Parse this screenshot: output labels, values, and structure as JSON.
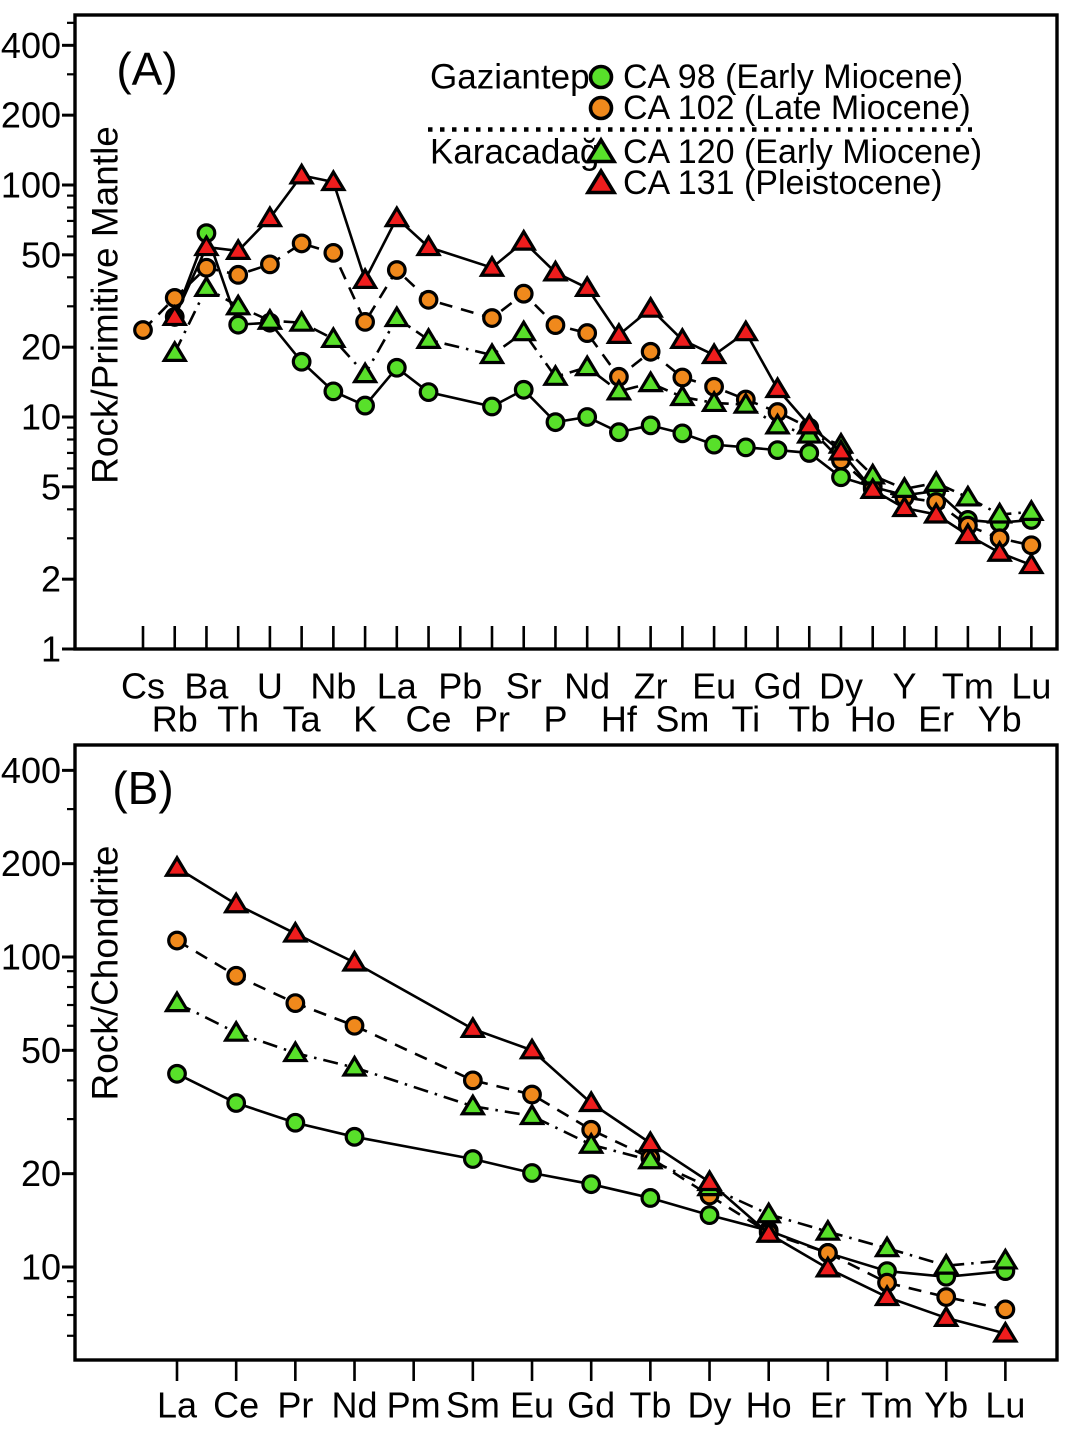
{
  "figure_title": "",
  "legend": {
    "groups": [
      {
        "name": "Gaziantep",
        "items": [
          "CA 98 (Early Miocene)",
          "CA 102 (Late Miocene)"
        ]
      },
      {
        "name": "Karacadağ",
        "items": [
          "CA 120 (Early Miocene)",
          "CA 131 (Pleistocene)"
        ]
      }
    ]
  },
  "colors": {
    "green": "#58E02A",
    "orange": "#F0891C",
    "red": "#EF1D1D",
    "line": "#000000"
  },
  "chart_data": [
    {
      "id": "A",
      "panel_label": "(A)",
      "type": "line",
      "yscale": "log",
      "ylabel": "Rock/Primitive Mantle",
      "ylim": [
        1,
        541
      ],
      "ytick_labels": [
        400,
        200,
        100,
        50,
        20,
        10,
        5,
        2,
        1
      ],
      "yticks_minor": [
        3,
        4,
        6,
        7,
        8,
        9,
        30,
        40,
        60,
        70,
        80,
        90,
        300,
        500
      ],
      "grid": false,
      "legend_position": "top-right-inside",
      "categories": [
        "Cs",
        "Rb",
        "Ba",
        "Th",
        "U",
        "Ta",
        "Nb",
        "K",
        "La",
        "Ce",
        "Pb",
        "Pr",
        "Sr",
        "P",
        "Nd",
        "Hf",
        "Zr",
        "Sm",
        "Eu",
        "Ti",
        "Gd",
        "Tb",
        "Dy",
        "Ho",
        "Y",
        "Er",
        "Tm",
        "Yb",
        "Lu"
      ],
      "series": [
        {
          "name": "CA 98 (Early Miocene)",
          "group": "Gaziantep",
          "marker": "circle",
          "marker_color": "#58E02A",
          "line_style": "solid",
          "values": [
            null,
            27,
            62,
            25,
            25.5,
            17.3,
            12.9,
            11.2,
            16.3,
            12.8,
            null,
            11.1,
            13.1,
            9.5,
            10,
            8.6,
            9.2,
            8.5,
            7.6,
            7.4,
            7.2,
            7,
            5.5,
            5,
            4.6,
            4.8,
            3.6,
            3.5,
            3.6
          ]
        },
        {
          "name": "CA 102 (Late Miocene)",
          "group": "Gaziantep",
          "marker": "circle",
          "marker_color": "#F0891C",
          "line_style": "dashed",
          "values": [
            23.7,
            32.6,
            44,
            41,
            45.5,
            56,
            51,
            25.7,
            43,
            32,
            null,
            26.7,
            34,
            24.9,
            23,
            14.9,
            19.1,
            14.8,
            13.5,
            11.9,
            10.5,
            9,
            6.5,
            4.9,
            4.5,
            4.3,
            3.4,
            3,
            2.8
          ]
        },
        {
          "name": "CA 120 (Early Miocene)",
          "group": "Karacadağ",
          "marker": "triangle",
          "marker_color": "#58E02A",
          "line_style": "dashdot",
          "values": [
            null,
            18.9,
            36,
            30,
            26,
            25.5,
            21.7,
            15.3,
            26.7,
            21.5,
            null,
            18.5,
            23.2,
            14.9,
            16.4,
            12.9,
            14,
            12.2,
            11.5,
            11.3,
            9.2,
            8.4,
            7.6,
            5.6,
            4.9,
            5.2,
            4.5,
            3.8,
            3.9
          ]
        },
        {
          "name": "CA 131 (Pleistocene)",
          "group": "Karacadağ",
          "marker": "triangle",
          "marker_color": "#EF1D1D",
          "line_style": "solid",
          "values": [
            null,
            27,
            54,
            52,
            72,
            110,
            103,
            39,
            72,
            54,
            null,
            44,
            57,
            42,
            36,
            22.6,
            29.3,
            21.5,
            18.5,
            23.2,
            13.2,
            9.2,
            7.1,
            4.85,
            4.05,
            3.8,
            3.1,
            2.6,
            2.3
          ]
        }
      ]
    },
    {
      "id": "B",
      "panel_label": "(B)",
      "type": "line",
      "yscale": "log",
      "ylabel": "Rock/Chondrite",
      "ylim": [
        5,
        483
      ],
      "ytick_labels": [
        400,
        200,
        100,
        50,
        20,
        10
      ],
      "yticks_minor": [
        6,
        7,
        8,
        9,
        30,
        40,
        60,
        70,
        80,
        90,
        300
      ],
      "grid": false,
      "categories": [
        "La",
        "Ce",
        "Pr",
        "Nd",
        "Pm",
        "Sm",
        "Eu",
        "Gd",
        "Tb",
        "Dy",
        "Ho",
        "Er",
        "Tm",
        "Yb",
        "Lu"
      ],
      "series": [
        {
          "name": "CA 98 (Early Miocene)",
          "group": "Gaziantep",
          "marker": "circle",
          "marker_color": "#58E02A",
          "line_style": "solid",
          "values": [
            42,
            33.8,
            29.2,
            26.3,
            null,
            22.3,
            20.1,
            18.5,
            16.7,
            14.7,
            13.1,
            11.1,
            9.7,
            9.3,
            9.7
          ]
        },
        {
          "name": "CA 102 (Late Miocene)",
          "group": "Gaziantep",
          "marker": "circle",
          "marker_color": "#F0891C",
          "line_style": "dashed",
          "values": [
            113,
            87,
            71,
            60,
            null,
            40,
            36,
            27.7,
            22.5,
            17,
            12.9,
            11.1,
            8.9,
            8,
            7.3
          ]
        },
        {
          "name": "CA 120 (Early Miocene)",
          "group": "Karacadağ",
          "marker": "triangle",
          "marker_color": "#58E02A",
          "line_style": "dashdot",
          "values": [
            71,
            57,
            49,
            44,
            null,
            33,
            30.7,
            24.8,
            22.1,
            18.1,
            14.8,
            13,
            11.5,
            10.1,
            10.5
          ]
        },
        {
          "name": "CA 131 (Pleistocene)",
          "group": "Karacadağ",
          "marker": "triangle",
          "marker_color": "#EF1D1D",
          "line_style": "solid",
          "values": [
            194,
            148,
            119,
            96,
            null,
            58.6,
            50,
            33.8,
            25.1,
            18.8,
            12.8,
            9.9,
            8,
            6.85,
            6.1
          ]
        }
      ]
    }
  ]
}
